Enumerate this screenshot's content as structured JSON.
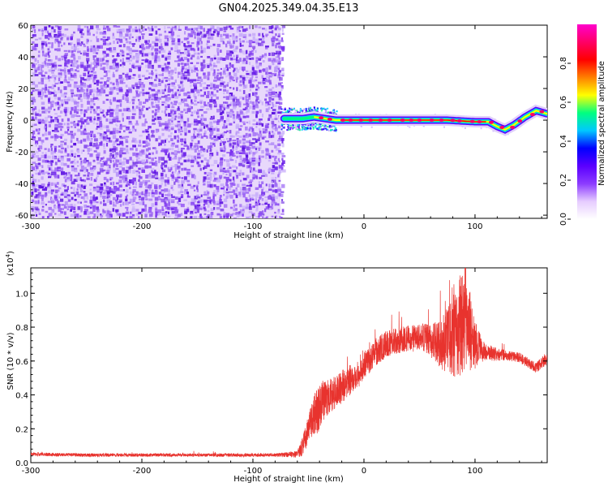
{
  "title": "GN04.2025.349.04.35.E13",
  "colorbar": {
    "label": "Normalized spectral amplitude",
    "range": [
      0,
      1
    ],
    "ticks": [
      "0.0",
      "0.2",
      "0.4",
      "0.6",
      "0.8"
    ],
    "tick_values": [
      0,
      0.2,
      0.4,
      0.6,
      0.8
    ],
    "colors": [
      "#ffffff",
      "#e6ccff",
      "#8c3cff",
      "#5a00ff",
      "#0000ff",
      "#00c8ff",
      "#00ff80",
      "#ffff00",
      "#ff8000",
      "#ff0000",
      "#ff0066",
      "#ff00cc"
    ]
  },
  "chart_data": [
    {
      "type": "heatmap",
      "title": "GN04.2025.349.04.35.E13",
      "xlabel": "Height of straight line (km)",
      "ylabel": "Frequency (Hz)",
      "xlim": [
        -300,
        165
      ],
      "ylim": [
        -62,
        60
      ],
      "xticks": [
        -300,
        -200,
        -100,
        0,
        100
      ],
      "yticks": [
        -60,
        -40,
        -20,
        0,
        20,
        40,
        60
      ],
      "noise_region_x": [
        -300,
        -75
      ],
      "ridge": {
        "x": [
          -75,
          -65,
          -55,
          -45,
          -35,
          -25,
          0,
          25,
          50,
          75,
          100,
          112,
          120,
          127,
          135,
          145,
          155,
          165
        ],
        "y": [
          1,
          1,
          1,
          2,
          1,
          0,
          0,
          0,
          0,
          0,
          -1,
          -1,
          -4,
          -6,
          -3,
          2,
          6,
          4
        ]
      }
    },
    {
      "type": "line",
      "xlabel": "Height of straight line (km)",
      "ylabel": "SNR (10 * v/v)",
      "y_multiplier": "(x10",
      "y_multiplier_exp": "4",
      "y_multiplier_close": ")",
      "xlim": [
        -300,
        165
      ],
      "ylim": [
        0,
        1.15
      ],
      "xticks": [
        -300,
        -200,
        -100,
        0,
        100
      ],
      "yticks": [
        0.0,
        0.2,
        0.4,
        0.6,
        0.8,
        1.0
      ],
      "ytick_labels": [
        "0.0",
        "0.2",
        "0.4",
        "0.6",
        "0.8",
        "1.0"
      ],
      "color": "#e8332e",
      "series": [
        {
          "x": [
            -300,
            -250,
            -200,
            -150,
            -100,
            -80,
            -60,
            -55,
            -50,
            -45,
            -40,
            -35,
            -30,
            -25,
            -20,
            -15,
            -10,
            -5,
            0,
            5,
            10,
            20,
            30,
            40,
            50,
            60,
            70,
            75,
            80,
            85,
            90,
            95,
            100,
            105,
            110,
            120,
            130,
            140,
            150,
            155,
            165
          ],
          "y": [
            0.05,
            0.045,
            0.045,
            0.045,
            0.045,
            0.045,
            0.05,
            0.1,
            0.2,
            0.28,
            0.32,
            0.38,
            0.4,
            0.42,
            0.45,
            0.48,
            0.5,
            0.52,
            0.58,
            0.6,
            0.65,
            0.7,
            0.72,
            0.73,
            0.74,
            0.72,
            0.7,
            0.72,
            0.75,
            0.8,
            0.82,
            0.78,
            0.7,
            0.67,
            0.65,
            0.64,
            0.63,
            0.62,
            0.58,
            0.56,
            0.62
          ],
          "noise": [
            0.01,
            0.01,
            0.01,
            0.01,
            0.01,
            0.01,
            0.02,
            0.06,
            0.08,
            0.12,
            0.14,
            0.12,
            0.1,
            0.1,
            0.1,
            0.1,
            0.08,
            0.08,
            0.08,
            0.07,
            0.08,
            0.08,
            0.08,
            0.08,
            0.08,
            0.1,
            0.15,
            0.2,
            0.25,
            0.3,
            0.3,
            0.25,
            0.15,
            0.08,
            0.05,
            0.04,
            0.03,
            0.03,
            0.03,
            0.03,
            0.04
          ]
        }
      ]
    }
  ]
}
